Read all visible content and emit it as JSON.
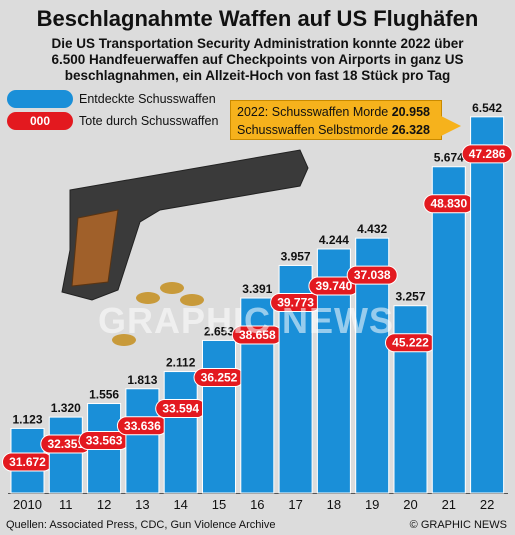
{
  "title": "Beschlagnahmte Waffen auf US Flughäfen",
  "subtitle_lines": [
    "Die US Transportation Security Administration konnte 2022 über",
    "6.500 Handfeuerwaffen auf Checkpoints von Airports in ganz US",
    "beschlagnahmen, ein Allzeit-Hoch von fast 18 Stück pro Tag"
  ],
  "legend": {
    "firearms": "Entdeckte Schusswaffen",
    "deaths_swatch": "000",
    "deaths": "Tote durch Schusswaffen"
  },
  "callout": {
    "line1_prefix": "2022: Schusswaffen Morde ",
    "line1_value": "20.958",
    "line2_prefix": "Schusswaffen Selbstmorde ",
    "line2_value": "26.328"
  },
  "watermark": "GRAPHIC NEWS",
  "footer": {
    "source": "Quellen: Associated Press, CDC, Gun Violence Archive",
    "brand": "© GRAPHIC NEWS"
  },
  "colors": {
    "bar": "#1a8fd8",
    "red": "#e3191f",
    "callout": "#f6b21c"
  },
  "chart_data": {
    "type": "bar",
    "categories": [
      "2010",
      "11",
      "12",
      "13",
      "14",
      "15",
      "16",
      "17",
      "18",
      "19",
      "20",
      "21",
      "22"
    ],
    "series": [
      {
        "name": "Entdeckte Schusswaffen",
        "values": [
          1123,
          1320,
          1556,
          1813,
          2112,
          2653,
          3391,
          3957,
          4244,
          4432,
          3257,
          5674,
          6542
        ],
        "labels": [
          "1.123",
          "1.320",
          "1.556",
          "1.813",
          "2.112",
          "2.653",
          "3.391",
          "3.957",
          "4.244",
          "4.432",
          "3.257",
          "5.674",
          "6.542"
        ]
      },
      {
        "name": "Tote durch Schusswaffen",
        "values": [
          31672,
          32351,
          33563,
          33636,
          33594,
          36252,
          38658,
          39773,
          39740,
          37038,
          45222,
          48830,
          47286
        ],
        "labels": [
          "31.672",
          "32.351",
          "33.563",
          "33.636",
          "33.594",
          "36.252",
          "38.658",
          "39.773",
          "39.740",
          "37.038",
          "45.222",
          "48.830",
          "47.286"
        ]
      }
    ],
    "ylim": [
      0,
      6800
    ],
    "grid": false,
    "legend_position": "top-left"
  }
}
